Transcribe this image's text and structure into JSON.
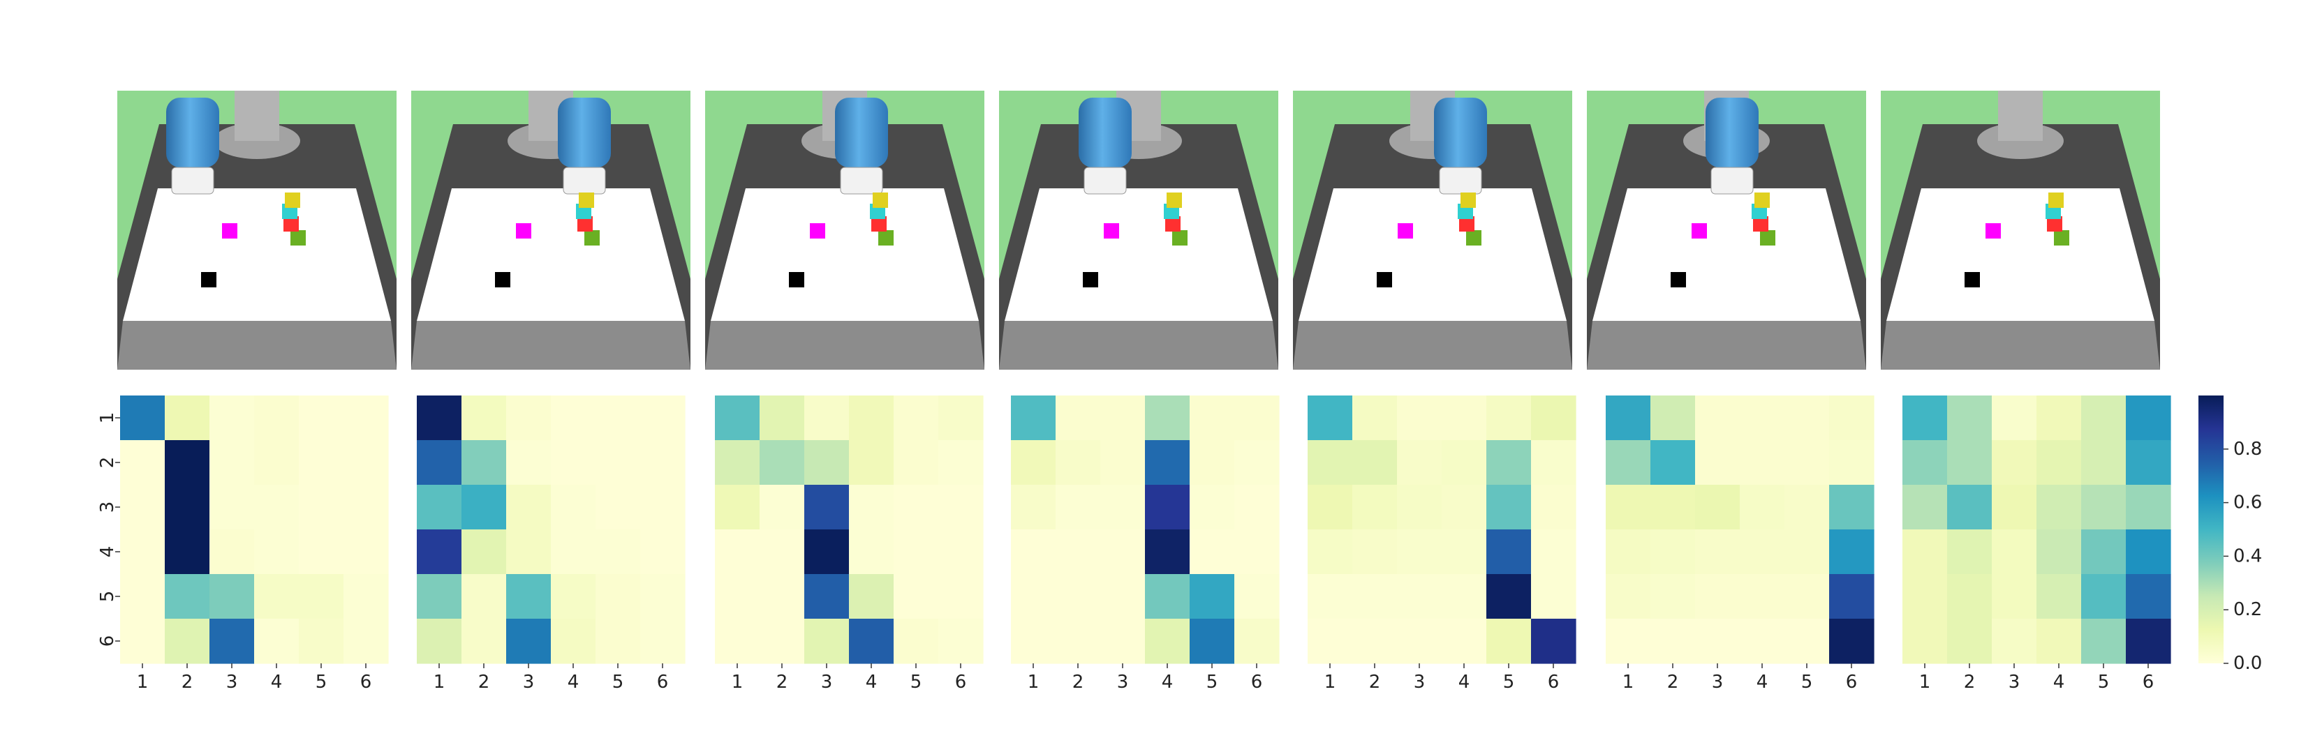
{
  "figure": {
    "panels_count": 7,
    "scene_colors": {
      "background_green": "#8fd88f",
      "table_top": "#ffffff",
      "table_front": "#8c8c8c",
      "floor": "#4a4a4a",
      "robot_gray": "#a3a3a3",
      "robot_white": "#f2f2f2",
      "robot_blue": "#3d8fd0"
    }
  },
  "chart_data": [
    {
      "type": "heatmap",
      "x_ticks": [
        "1",
        "2",
        "3",
        "4",
        "5",
        "6"
      ],
      "y_ticks": [
        "1",
        "2",
        "3",
        "4",
        "5",
        "6"
      ],
      "values": [
        [
          0.68,
          0.12,
          0.02,
          0.03,
          0.01,
          0.01
        ],
        [
          0.01,
          1.0,
          0.02,
          0.03,
          0.01,
          0.01
        ],
        [
          0.01,
          1.0,
          0.02,
          0.02,
          0.01,
          0.01
        ],
        [
          0.01,
          1.0,
          0.03,
          0.02,
          0.01,
          0.01
        ],
        [
          0.01,
          0.41,
          0.38,
          0.06,
          0.06,
          0.02
        ],
        [
          0.01,
          0.17,
          0.72,
          0.02,
          0.05,
          0.02
        ]
      ]
    },
    {
      "type": "heatmap",
      "x_ticks": [
        "1",
        "2",
        "3",
        "4",
        "5",
        "6"
      ],
      "y_ticks": [
        "1",
        "2",
        "3",
        "4",
        "5",
        "6"
      ],
      "values": [
        [
          0.98,
          0.08,
          0.03,
          0.01,
          0.01,
          0.01
        ],
        [
          0.74,
          0.37,
          0.02,
          0.01,
          0.01,
          0.01
        ],
        [
          0.45,
          0.52,
          0.07,
          0.02,
          0.01,
          0.01
        ],
        [
          0.85,
          0.16,
          0.07,
          0.02,
          0.02,
          0.01
        ],
        [
          0.38,
          0.05,
          0.45,
          0.06,
          0.03,
          0.02
        ],
        [
          0.18,
          0.05,
          0.68,
          0.07,
          0.03,
          0.02
        ]
      ]
    },
    {
      "type": "heatmap",
      "x_ticks": [
        "1",
        "2",
        "3",
        "4",
        "5",
        "6"
      ],
      "y_ticks": [
        "1",
        "2",
        "3",
        "4",
        "5",
        "6"
      ],
      "values": [
        [
          0.45,
          0.16,
          0.05,
          0.1,
          0.03,
          0.05
        ],
        [
          0.2,
          0.3,
          0.25,
          0.1,
          0.03,
          0.02
        ],
        [
          0.11,
          0.02,
          0.8,
          0.02,
          0.01,
          0.01
        ],
        [
          0.01,
          0.01,
          0.99,
          0.02,
          0.01,
          0.01
        ],
        [
          0.01,
          0.01,
          0.75,
          0.18,
          0.01,
          0.01
        ],
        [
          0.01,
          0.01,
          0.16,
          0.75,
          0.03,
          0.02
        ]
      ]
    },
    {
      "type": "heatmap",
      "x_ticks": [
        "1",
        "2",
        "3",
        "4",
        "5",
        "6"
      ],
      "y_ticks": [
        "1",
        "2",
        "3",
        "4",
        "5",
        "6"
      ],
      "values": [
        [
          0.47,
          0.03,
          0.03,
          0.3,
          0.03,
          0.03
        ],
        [
          0.1,
          0.05,
          0.03,
          0.72,
          0.03,
          0.02
        ],
        [
          0.05,
          0.02,
          0.02,
          0.87,
          0.02,
          0.01
        ],
        [
          0.01,
          0.01,
          0.01,
          0.97,
          0.01,
          0.01
        ],
        [
          0.01,
          0.01,
          0.01,
          0.4,
          0.55,
          0.02
        ],
        [
          0.01,
          0.01,
          0.01,
          0.16,
          0.68,
          0.05
        ]
      ]
    },
    {
      "type": "heatmap",
      "x_ticks": [
        "1",
        "2",
        "3",
        "4",
        "5",
        "6"
      ],
      "y_ticks": [
        "1",
        "2",
        "3",
        "4",
        "5",
        "6"
      ],
      "values": [
        [
          0.5,
          0.07,
          0.03,
          0.03,
          0.07,
          0.13
        ],
        [
          0.16,
          0.16,
          0.05,
          0.06,
          0.35,
          0.04
        ],
        [
          0.12,
          0.08,
          0.06,
          0.05,
          0.43,
          0.03
        ],
        [
          0.06,
          0.05,
          0.04,
          0.04,
          0.75,
          0.02
        ],
        [
          0.02,
          0.02,
          0.02,
          0.02,
          0.98,
          0.02
        ],
        [
          0.01,
          0.01,
          0.01,
          0.01,
          0.12,
          0.9
        ]
      ]
    },
    {
      "type": "heatmap",
      "x_ticks": [
        "1",
        "2",
        "3",
        "4",
        "5",
        "6"
      ],
      "y_ticks": [
        "1",
        "2",
        "3",
        "4",
        "5",
        "6"
      ],
      "values": [
        [
          0.55,
          0.22,
          0.03,
          0.03,
          0.03,
          0.05
        ],
        [
          0.33,
          0.5,
          0.03,
          0.03,
          0.03,
          0.04
        ],
        [
          0.12,
          0.12,
          0.13,
          0.06,
          0.05,
          0.42
        ],
        [
          0.07,
          0.06,
          0.05,
          0.05,
          0.05,
          0.6
        ],
        [
          0.05,
          0.04,
          0.03,
          0.03,
          0.03,
          0.8
        ],
        [
          0.01,
          0.01,
          0.01,
          0.01,
          0.01,
          0.98
        ]
      ]
    },
    {
      "type": "heatmap",
      "x_ticks": [
        "1",
        "2",
        "3",
        "4",
        "5",
        "6"
      ],
      "y_ticks": [
        "1",
        "2",
        "3",
        "4",
        "5",
        "6"
      ],
      "values": [
        [
          0.5,
          0.3,
          0.04,
          0.1,
          0.2,
          0.6
        ],
        [
          0.35,
          0.3,
          0.1,
          0.15,
          0.2,
          0.55
        ],
        [
          0.28,
          0.45,
          0.12,
          0.22,
          0.28,
          0.33
        ],
        [
          0.1,
          0.17,
          0.08,
          0.24,
          0.4,
          0.62
        ],
        [
          0.1,
          0.15,
          0.08,
          0.2,
          0.46,
          0.72
        ],
        [
          0.1,
          0.15,
          0.06,
          0.1,
          0.34,
          0.95
        ]
      ]
    }
  ],
  "colorbar": {
    "range": [
      0,
      1
    ],
    "tick_labels": [
      "0.0",
      "0.2",
      "0.4",
      "0.6",
      "0.8"
    ],
    "colormap_stops": [
      "#ffffd9",
      "#edf8b1",
      "#c7e9b4",
      "#7fcdbb",
      "#41b6c4",
      "#1d91c0",
      "#225ea8",
      "#253494",
      "#081d58"
    ]
  }
}
